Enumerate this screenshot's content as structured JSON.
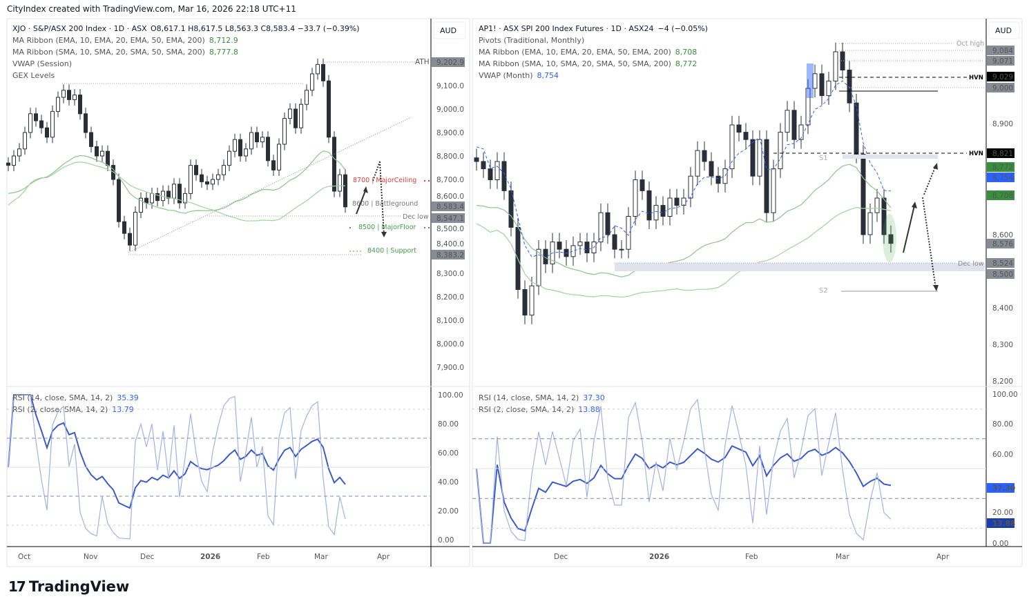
{
  "credit": "CityIndex created with TradingView.com, Mar 16, 2026 22:18 UTC+11",
  "brand": "TradingView",
  "colors": {
    "up": "#ffffff",
    "down": "#2a2e39",
    "ema": "#8bc48a",
    "sma": "#9fd49c",
    "vwap": "#2962ff",
    "rsi14": "#3a5bc7",
    "rsi2": "#9fb1e6",
    "grey_label": "#878b94",
    "green_label": "#388e3c",
    "blue_label": "#2962ff",
    "black_label": "#000000",
    "ceiling": "#e53935",
    "floor": "#43a047"
  },
  "left": {
    "currency": "AUD",
    "legend": {
      "title": "XJO · S&P/ASX 200 Index · 1D · ASX",
      "ohlc": "O8,617.1  H8,617.5  L8,563.3  C8,583.4  −33.7 (−0.39%)",
      "ema_label": "MA Ribbon (EMA, 10, EMA, 20, EMA, 50, EMA, 200)",
      "ema_value": "8,712.9",
      "sma_label": "MA Ribbon (SMA, 10, SMA, 20, SMA, 50, SMA, 200)",
      "sma_value": "8,777.8",
      "vwap_label": "VWAP (Session)",
      "gex_label": "GEX Levels"
    },
    "price_ticks": [
      "9,100.0",
      "9,000.0",
      "8,900.0",
      "8,800.0",
      "8,700.0",
      "8,600.0",
      "8,500.0",
      "8,400.0",
      "8,300.0",
      "8,200.0",
      "8,100.0",
      "8,000.0",
      "7,900.0"
    ],
    "price_badges": [
      "9,202.9",
      "8,583.4",
      "8,547.1",
      "8,383.2"
    ],
    "annotations": {
      "ath": "ATH",
      "ceiling": "8700 | MajorCeiling",
      "battleground": "8600 | Battleground",
      "dec_low": "Dec low",
      "floor": "8500 | MajorFloor",
      "support": "8400 | Support",
      "low": "Low"
    },
    "rsi": {
      "rsi14_label": "RSI (14, close, SMA, 14, 2)",
      "rsi14_value": "35.39",
      "rsi2_label": "RSI (2, close, SMA, 14, 2)",
      "rsi2_value": "13.79",
      "ticks": [
        "100.00",
        "80.00",
        "60.00",
        "40.00",
        "20.00",
        "0.00"
      ]
    },
    "time_ticks": [
      "Oct",
      "Nov",
      "Dec",
      "2026",
      "Feb",
      "Mar",
      "Apr"
    ]
  },
  "right": {
    "currency": "AUD",
    "legend": {
      "title": "AP1! · ASX SPI 200 Index Futures · 1D · ASX24",
      "change": "−4 (−0.05%)",
      "pivots_label": "Pivots (Traditional, Monthly)",
      "ema_label": "MA Ribbon (EMA, 10, EMA, 20, EMA, 50, EMA, 200)",
      "ema_value": "8,708",
      "sma_label": "MA Ribbon (SMA, 10, SMA, 20, SMA, 50, SMA, 200)",
      "sma_value": "8,772",
      "vwap_label": "VWAP (Month)",
      "vwap_value": "8,754"
    },
    "price_ticks": [
      "8,900",
      "8,600",
      "8,400",
      "8,300",
      "8,200"
    ],
    "price_badges": [
      {
        "v": "9,084",
        "c": "grey"
      },
      {
        "v": "9,071",
        "c": "grey"
      },
      {
        "v": "9,029",
        "c": "black"
      },
      {
        "v": "9,000",
        "c": "grey"
      },
      {
        "v": "8,821",
        "c": "black"
      },
      {
        "v": "8,772",
        "c": "green"
      },
      {
        "v": "8,754",
        "c": "blue"
      },
      {
        "v": "8,708",
        "c": "green"
      },
      {
        "v": "8,576",
        "c": "grey"
      },
      {
        "v": "8,524",
        "c": "grey"
      },
      {
        "v": "8,500",
        "c": "grey"
      }
    ],
    "annotations": {
      "oct_high": "Oct high",
      "hvn1": "HVN",
      "hvn2": "HVN",
      "s1": "S1",
      "s2": "S2",
      "dec_low": "Dec low"
    },
    "rsi": {
      "rsi14_label": "RSI (14, close, SMA, 14, 2)",
      "rsi14_value": "37.30",
      "rsi2_label": "RSI (2, close, SMA, 14, 2)",
      "rsi2_value": "13.88",
      "ticks": [
        "100.00",
        "80.00",
        "60.00",
        "20.00",
        "0.00"
      ]
    },
    "time_ticks": [
      "Dec",
      "2026",
      "Feb",
      "Mar",
      "Apr"
    ]
  },
  "chart_data": [
    {
      "type": "candlestick",
      "series": "XJO daily close (approx.)",
      "ylim": [
        7850,
        9250
      ],
      "closes": [
        8760,
        8800,
        8830,
        8900,
        8980,
        8950,
        8920,
        8880,
        8990,
        9050,
        9080,
        9040,
        9060,
        8980,
        8900,
        8840,
        8800,
        8820,
        8760,
        8700,
        8520,
        8470,
        8420,
        8560,
        8620,
        8600,
        8640,
        8610,
        8650,
        8620,
        8680,
        8600,
        8640,
        8760,
        8720,
        8690,
        8680,
        8700,
        8720,
        8760,
        8820,
        8870,
        8800,
        8830,
        8900,
        8860,
        8880,
        8780,
        8740,
        8850,
        8960,
        9000,
        8920,
        9020,
        9080,
        9150,
        9190,
        9120,
        8880,
        8650,
        8720,
        8583
      ]
    },
    {
      "type": "candlestick",
      "series": "AP1! daily close (approx.)",
      "ylim": [
        8180,
        9130
      ],
      "closes": [
        8800,
        8780,
        8750,
        8800,
        8720,
        8620,
        8450,
        8380,
        8460,
        8560,
        8520,
        8580,
        8560,
        8540,
        8570,
        8580,
        8550,
        8580,
        8660,
        8600,
        8560,
        8560,
        8650,
        8750,
        8720,
        8640,
        8680,
        8650,
        8700,
        8680,
        8700,
        8760,
        8830,
        8800,
        8760,
        8740,
        8780,
        8900,
        8880,
        8860,
        8760,
        8860,
        8660,
        8780,
        8880,
        8940,
        8860,
        8900,
        9000,
        9040,
        8980,
        9020,
        9100,
        9050,
        8960,
        8820,
        8600,
        8660,
        8700,
        8600,
        8576
      ]
    }
  ]
}
